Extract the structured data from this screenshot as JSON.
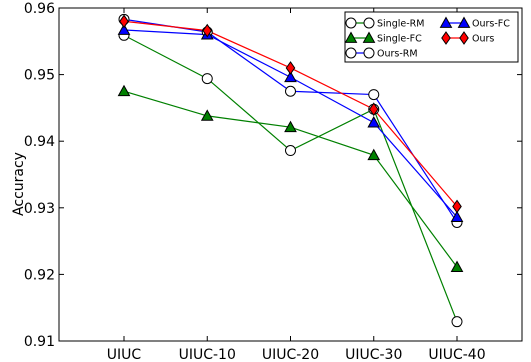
{
  "chart_data": {
    "type": "line",
    "title": "",
    "xlabel": "",
    "ylabel": "Accuracy",
    "categories": [
      "UIUC",
      "UIUC-10",
      "UIUC-20",
      "UIUC-30",
      "UIUC-40"
    ],
    "ylim": [
      0.91,
      0.96
    ],
    "yticks": [
      "0.91",
      "0.92",
      "0.93",
      "0.94",
      "0.95",
      "0.96"
    ],
    "grid": false,
    "legend_position": "top-right",
    "series": [
      {
        "name": "Single-RM",
        "color": "#008000",
        "marker": "circle-open",
        "values": [
          0.9559,
          0.9494,
          0.9386,
          0.9448,
          0.9129
        ]
      },
      {
        "name": "Single-FC",
        "color": "#008000",
        "marker": "triangle",
        "values": [
          0.9475,
          0.9438,
          0.9421,
          0.9379,
          0.9211
        ]
      },
      {
        "name": "Ours-RM",
        "color": "#0000ff",
        "marker": "circle-open",
        "values": [
          0.9583,
          0.9564,
          0.9475,
          0.947,
          0.9278
        ]
      },
      {
        "name": "Ours-FC",
        "color": "#0000ff",
        "marker": "triangle",
        "values": [
          0.9567,
          0.956,
          0.9496,
          0.9428,
          0.9286
        ]
      },
      {
        "name": "Ours",
        "color": "#ff0000",
        "marker": "diamond",
        "values": [
          0.958,
          0.9566,
          0.951,
          0.9448,
          0.9302
        ]
      }
    ]
  }
}
